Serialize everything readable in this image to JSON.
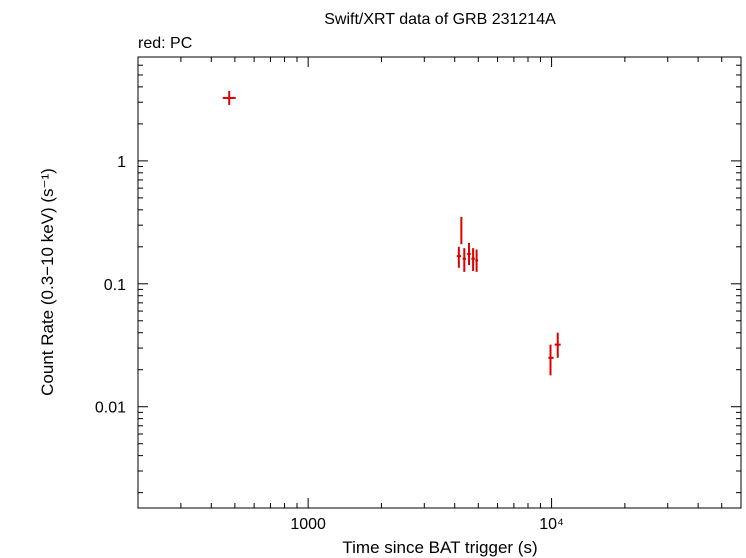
{
  "chart_data": {
    "type": "scatter",
    "title": "Swift/XRT data of GRB 231214A",
    "subtitle": "red: PC",
    "xlabel": "Time since BAT trigger (s)",
    "ylabel": "Count Rate (0.3−10 keV) (s⁻¹)",
    "x_scale": "log",
    "y_scale": "log",
    "xlim": [
      200,
      60000
    ],
    "ylim": [
      0.0015,
      7
    ],
    "x_ticks": [
      {
        "value": 1000,
        "label": "1000"
      },
      {
        "value": 10000,
        "label": "10⁴"
      }
    ],
    "y_ticks": [
      {
        "value": 1,
        "label": "1"
      },
      {
        "value": 0.1,
        "label": "0.1"
      },
      {
        "value": 0.01,
        "label": "0.01"
      }
    ],
    "grid": false,
    "series": [
      {
        "color": "#e00000",
        "points": [
          {
            "x": 474,
            "xerr": [
              446,
              504
            ],
            "y": 3.25,
            "yerr": [
              2.85,
              3.7
            ]
          },
          {
            "x": 4160,
            "xerr": [
              4080,
              4250
            ],
            "y": 0.168,
            "yerr": [
              0.135,
              0.2
            ]
          },
          {
            "x": 4260,
            "xerr": [
              4230,
              4290
            ],
            "y": 0.28,
            "yerr": [
              0.21,
              0.35
            ]
          },
          {
            "x": 4380,
            "xerr": [
              4310,
              4450
            ],
            "y": 0.16,
            "yerr": [
              0.125,
              0.195
            ]
          },
          {
            "x": 4580,
            "xerr": [
              4500,
              4660
            ],
            "y": 0.175,
            "yerr": [
              0.142,
              0.215
            ]
          },
          {
            "x": 4760,
            "xerr": [
              4680,
              4840
            ],
            "y": 0.16,
            "yerr": [
              0.127,
              0.195
            ]
          },
          {
            "x": 4920,
            "xerr": [
              4860,
              4990
            ],
            "y": 0.155,
            "yerr": [
              0.125,
              0.19
            ]
          },
          {
            "x": 9900,
            "xerr": [
              9700,
              10200
            ],
            "y": 0.025,
            "yerr": [
              0.018,
              0.032
            ]
          },
          {
            "x": 10600,
            "xerr": [
              10300,
              10900
            ],
            "y": 0.032,
            "yerr": [
              0.025,
              0.04
            ]
          }
        ]
      }
    ]
  }
}
